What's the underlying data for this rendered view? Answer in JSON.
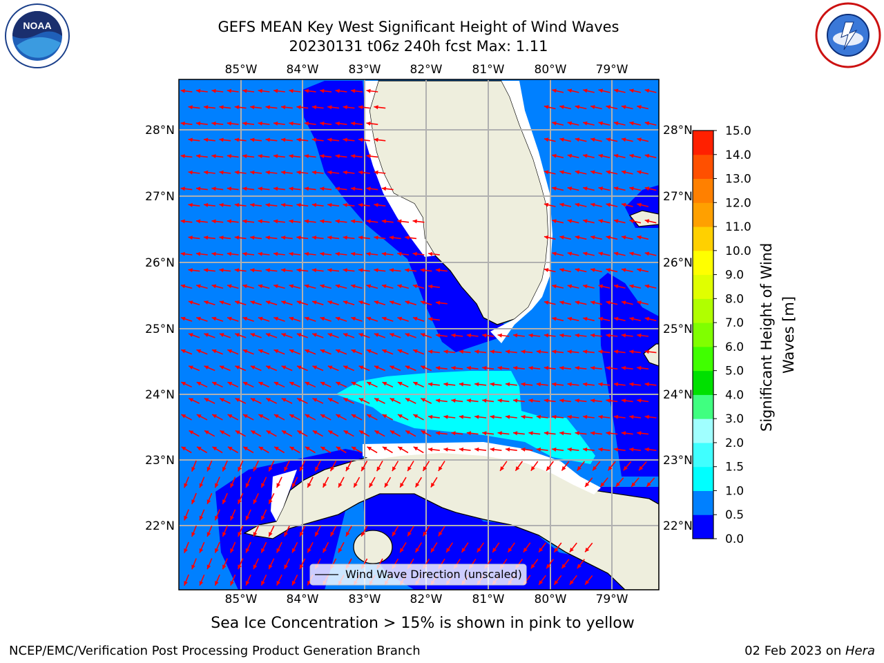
{
  "header": {
    "title_line1": "GEFS MEAN Key West Significant Height of Wind Waves",
    "title_line2": "20230131 t06z 240h fcst   Max: 1.11"
  },
  "logos": {
    "left": {
      "name": "noaa-logo",
      "text": "NOAA",
      "ring_text": "NATIONAL OCEANIC AND ATMOSPHERIC ADMINISTRATION · U.S. DEPARTMENT OF COMMERCE"
    },
    "right": {
      "name": "nws-logo",
      "ring_text": "NATIONAL WEATHER SERVICE"
    }
  },
  "map": {
    "lon_labels": [
      "85°W",
      "84°W",
      "83°W",
      "82°W",
      "81°W",
      "80°W",
      "79°W"
    ],
    "lat_labels": [
      "28°N",
      "27°N",
      "26°N",
      "25°N",
      "24°N",
      "23°N",
      "22°N"
    ],
    "legend_label": "Wind Wave Direction (unscaled)",
    "colors": {
      "land": "#eeeedd",
      "ocean_0_0p5": "#0000ff",
      "ocean_0p5_1": "#0080ff",
      "ocean_1_1p5": "#00ffff",
      "arrow": "#ff0000",
      "grid": "#b0b0b0"
    }
  },
  "colorbar": {
    "label": "Significant Height of Wind Waves [m]",
    "ticks": [
      "15.0",
      "14.0",
      "13.0",
      "12.0",
      "11.0",
      "10.0",
      "9.0",
      "8.0",
      "7.0",
      "6.0",
      "5.0",
      "4.0",
      "3.0",
      "2.0",
      "1.5",
      "1.0",
      "0.5",
      "0.0"
    ],
    "colors": [
      "#0000ff",
      "#0080ff",
      "#00ffff",
      "#40ffff",
      "#a0ffff",
      "#40ff80",
      "#00e000",
      "#40ff00",
      "#80ff00",
      "#b0ff00",
      "#e0ff00",
      "#ffff00",
      "#ffd000",
      "#ffa000",
      "#ff8000",
      "#ff5000",
      "#ff2000",
      "#ff0000"
    ]
  },
  "footer": {
    "note": "Sea Ice Concentration > 15% is shown in pink to yellow",
    "left": "NCEP/EMC/Verification Post Processing Product Generation Branch",
    "right_date": "02 Feb 2023 on ",
    "right_host": "Hera"
  }
}
